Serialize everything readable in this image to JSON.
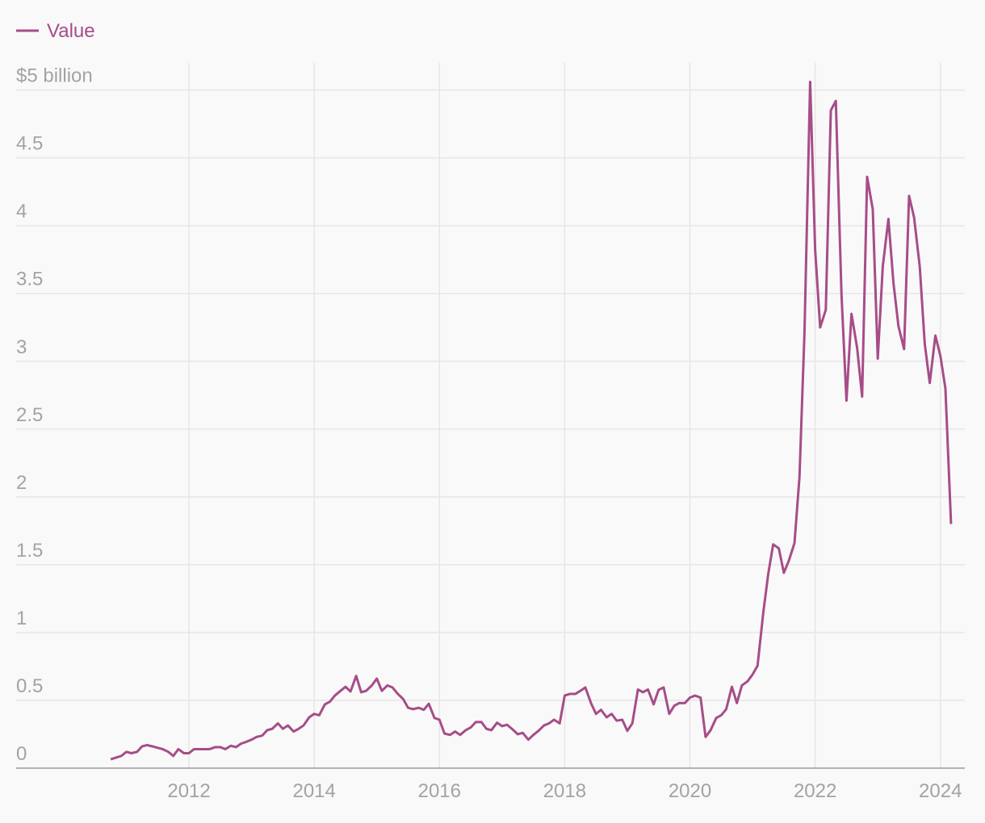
{
  "chart_data": {
    "type": "line",
    "series": [
      {
        "name": "Value",
        "color": "#a64d88",
        "x": [
          2010.75,
          2010.83,
          2010.92,
          2011,
          2011.08,
          2011.17,
          2011.25,
          2011.33,
          2011.42,
          2011.5,
          2011.58,
          2011.67,
          2011.75,
          2011.83,
          2011.92,
          2012,
          2012.08,
          2012.17,
          2012.25,
          2012.33,
          2012.42,
          2012.5,
          2012.58,
          2012.67,
          2012.75,
          2012.83,
          2012.92,
          2013,
          2013.08,
          2013.17,
          2013.25,
          2013.33,
          2013.42,
          2013.5,
          2013.58,
          2013.67,
          2013.75,
          2013.83,
          2013.92,
          2014,
          2014.08,
          2014.17,
          2014.25,
          2014.33,
          2014.42,
          2014.5,
          2014.58,
          2014.67,
          2014.75,
          2014.83,
          2014.92,
          2015,
          2015.08,
          2015.17,
          2015.25,
          2015.33,
          2015.42,
          2015.5,
          2015.58,
          2015.67,
          2015.75,
          2015.83,
          2015.92,
          2016,
          2016.08,
          2016.17,
          2016.25,
          2016.33,
          2016.42,
          2016.5,
          2016.58,
          2016.67,
          2016.75,
          2016.83,
          2016.92,
          2017,
          2017.08,
          2017.17,
          2017.25,
          2017.33,
          2017.42,
          2017.5,
          2017.58,
          2017.67,
          2017.75,
          2017.83,
          2017.92,
          2018,
          2018.08,
          2018.17,
          2018.25,
          2018.33,
          2018.42,
          2018.5,
          2018.58,
          2018.67,
          2018.75,
          2018.83,
          2018.92,
          2019,
          2019.08,
          2019.17,
          2019.25,
          2019.33,
          2019.42,
          2019.5,
          2019.58,
          2019.67,
          2019.75,
          2019.83,
          2019.92,
          2020,
          2020.08,
          2020.17,
          2020.25,
          2020.33,
          2020.42,
          2020.5,
          2020.58,
          2020.67,
          2020.75,
          2020.83,
          2020.92,
          2021,
          2021.08,
          2021.17,
          2021.25,
          2021.33,
          2021.42,
          2021.5,
          2021.58,
          2021.67,
          2021.75,
          2021.83,
          2021.92,
          2022,
          2022.08,
          2022.17,
          2022.25,
          2022.33,
          2022.42,
          2022.5,
          2022.58,
          2022.67,
          2022.75,
          2022.83,
          2022.92,
          2023,
          2023.08,
          2023.17,
          2023.25,
          2023.33,
          2023.42,
          2023.5,
          2023.58,
          2023.67,
          2023.75,
          2023.83,
          2023.92,
          2024,
          2024.08,
          2024.17
        ],
        "values": [
          0.065,
          0.077,
          0.09,
          0.12,
          0.11,
          0.12,
          0.16,
          0.17,
          0.16,
          0.15,
          0.14,
          0.12,
          0.09,
          0.14,
          0.11,
          0.11,
          0.14,
          0.14,
          0.14,
          0.14,
          0.155,
          0.155,
          0.14,
          0.165,
          0.155,
          0.18,
          0.195,
          0.21,
          0.23,
          0.24,
          0.28,
          0.29,
          0.33,
          0.29,
          0.315,
          0.27,
          0.29,
          0.315,
          0.375,
          0.4,
          0.39,
          0.47,
          0.49,
          0.535,
          0.57,
          0.6,
          0.565,
          0.68,
          0.56,
          0.57,
          0.61,
          0.66,
          0.57,
          0.61,
          0.595,
          0.55,
          0.51,
          0.445,
          0.435,
          0.445,
          0.43,
          0.475,
          0.37,
          0.357,
          0.255,
          0.245,
          0.27,
          0.245,
          0.28,
          0.3,
          0.34,
          0.34,
          0.29,
          0.28,
          0.335,
          0.31,
          0.32,
          0.285,
          0.25,
          0.26,
          0.21,
          0.245,
          0.275,
          0.315,
          0.33,
          0.357,
          0.33,
          0.535,
          0.547,
          0.547,
          0.57,
          0.595,
          0.48,
          0.4,
          0.43,
          0.375,
          0.4,
          0.35,
          0.357,
          0.275,
          0.33,
          0.58,
          0.56,
          0.58,
          0.47,
          0.577,
          0.595,
          0.4,
          0.46,
          0.48,
          0.48,
          0.52,
          0.535,
          0.52,
          0.23,
          0.28,
          0.37,
          0.39,
          0.435,
          0.6,
          0.48,
          0.61,
          0.64,
          0.69,
          0.755,
          1.14,
          1.43,
          1.65,
          1.62,
          1.44,
          1.53,
          1.66,
          2.15,
          3.22,
          5.06,
          3.82,
          3.25,
          3.38,
          4.85,
          4.92,
          3.5,
          2.71,
          3.35,
          3.1,
          2.74,
          4.36,
          4.12,
          3.02,
          3.7,
          4.05,
          3.58,
          3.26,
          3.09,
          4.22,
          4.06,
          3.7,
          3.13,
          2.84,
          3.19,
          3.04,
          2.8,
          1.8
        ]
      }
    ],
    "xlim": [
      2009.24,
      2024.39
    ],
    "xticks": [
      2012,
      2014,
      2016,
      2018,
      2020,
      2022,
      2024
    ],
    "ylim": [
      0,
      5.2
    ],
    "yticks": [
      0,
      0.5,
      1,
      1.5,
      2,
      2.5,
      3,
      3.5,
      4,
      4.5,
      {
        "value": 5,
        "label": "$5 billion"
      }
    ],
    "grid": true,
    "legend": "top-left"
  }
}
